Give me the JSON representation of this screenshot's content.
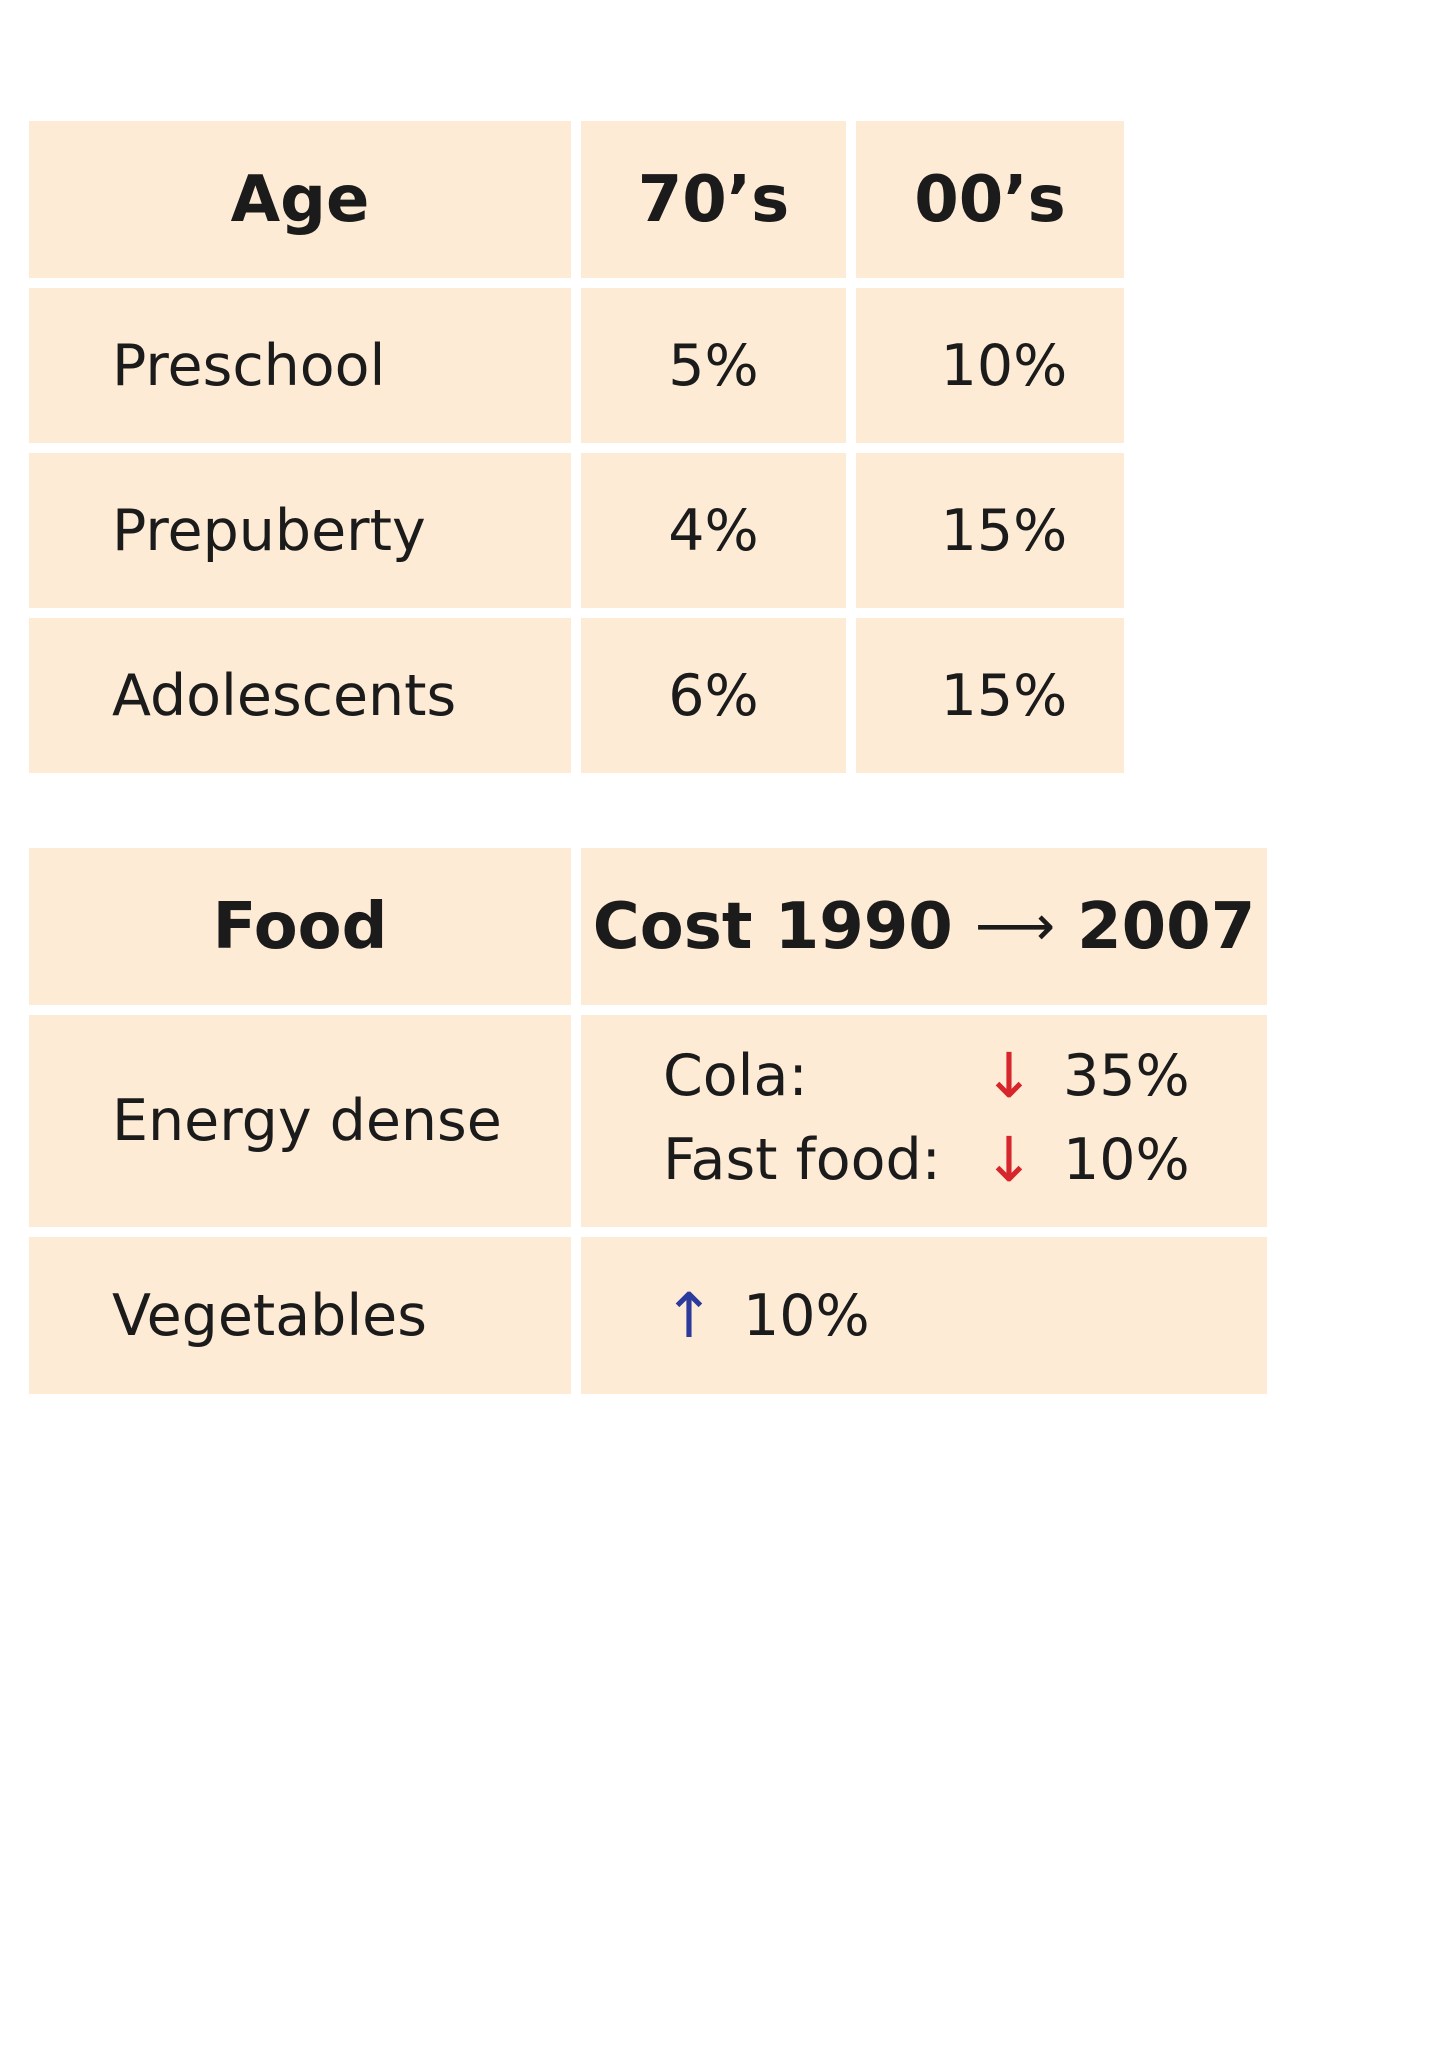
{
  "age_table": {
    "headers": [
      "Age",
      "70’s",
      "00’s"
    ],
    "rows": [
      {
        "label": "Preschool",
        "v70": "5%",
        "v00": "10%"
      },
      {
        "label": "Prepuberty",
        "v70": "4%",
        "v00": "15%"
      },
      {
        "label": "Adolescents",
        "v70": "6%",
        "v00": "15%"
      }
    ]
  },
  "food_table": {
    "header_food": "Food",
    "header_cost_prefix": "Cost 1990",
    "header_cost_arrow": "⟶",
    "header_cost_suffix": "2007",
    "energy_label": "Energy dense",
    "cola_label": "Cola:",
    "cola_value": "35%",
    "fastfood_label": "Fast food:",
    "fastfood_value": "10%",
    "veg_label": "Vegetables",
    "veg_value": "10%",
    "down_arrow": "↓",
    "up_arrow": "↑"
  },
  "colors": {
    "cell_bg": "#fdebd5",
    "down_arrow": "#d7262b",
    "up_arrow": "#2b3a9c"
  }
}
